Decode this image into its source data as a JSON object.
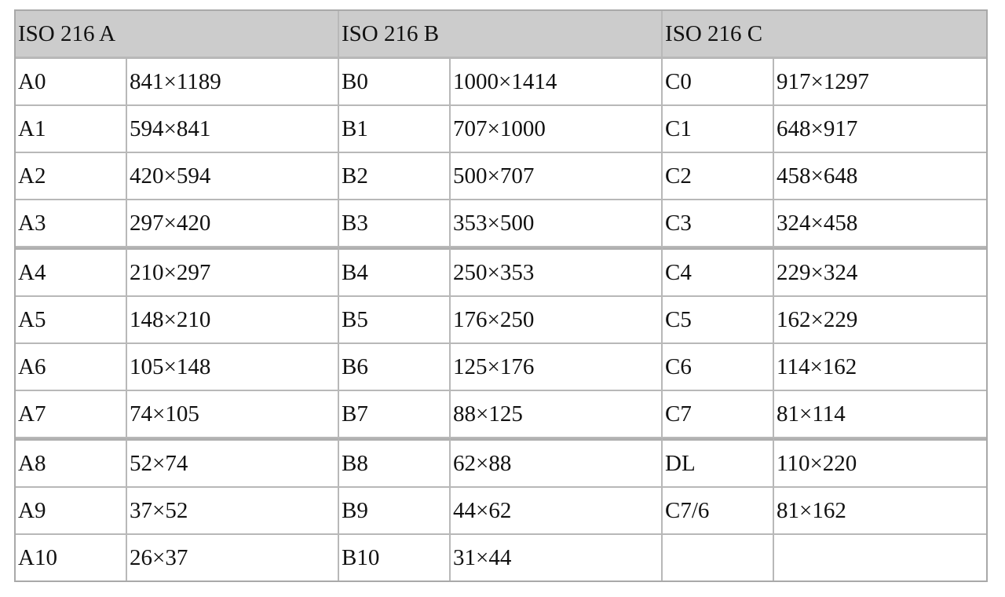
{
  "table": {
    "headers": [
      "ISO 216 A",
      "ISO 216 B",
      "ISO 216 C"
    ],
    "rows": [
      [
        [
          "A0",
          "841×1189"
        ],
        [
          "B0",
          "1000×1414"
        ],
        [
          "C0",
          "917×1297"
        ]
      ],
      [
        [
          "A1",
          "594×841"
        ],
        [
          "B1",
          "707×1000"
        ],
        [
          "C1",
          "648×917"
        ]
      ],
      [
        [
          "A2",
          "420×594"
        ],
        [
          "B2",
          "500×707"
        ],
        [
          "C2",
          "458×648"
        ]
      ],
      [
        [
          "A3",
          "297×420"
        ],
        [
          "B3",
          "353×500"
        ],
        [
          "C3",
          "324×458"
        ]
      ],
      [
        [
          "A4",
          "210×297"
        ],
        [
          "B4",
          "250×353"
        ],
        [
          "C4",
          "229×324"
        ]
      ],
      [
        [
          "A5",
          "148×210"
        ],
        [
          "B5",
          "176×250"
        ],
        [
          "C5",
          "162×229"
        ]
      ],
      [
        [
          "A6",
          "105×148"
        ],
        [
          "B6",
          "125×176"
        ],
        [
          "C6",
          "114×162"
        ]
      ],
      [
        [
          "A7",
          "74×105"
        ],
        [
          "B7",
          "88×125"
        ],
        [
          "C7",
          "81×114"
        ]
      ],
      [
        [
          "A8",
          "52×74"
        ],
        [
          "B8",
          "62×88"
        ],
        [
          "DL",
          "110×220"
        ]
      ],
      [
        [
          "A9",
          "37×52"
        ],
        [
          "B9",
          "44×62"
        ],
        [
          "C7/6",
          "81×162"
        ]
      ],
      [
        [
          "A10",
          "26×37"
        ],
        [
          "B10",
          "31×44"
        ],
        [
          "",
          ""
        ]
      ]
    ]
  }
}
